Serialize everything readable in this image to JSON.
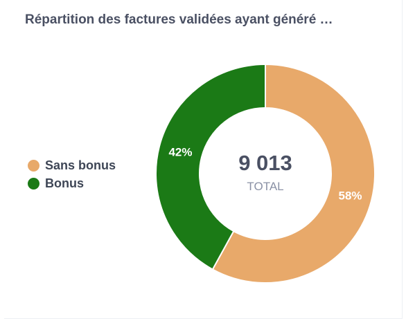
{
  "card": {
    "title": "Répartition des factures validées ayant généré …"
  },
  "chart_data": {
    "type": "pie",
    "categories": [
      "Sans bonus",
      "Bonus"
    ],
    "values": [
      58,
      42
    ],
    "labels": [
      "58%",
      "42%"
    ],
    "colors": [
      "#e8a96a",
      "#1b7a16"
    ],
    "legend_position": "left",
    "center": {
      "value": "9 013",
      "label": "TOTAL"
    }
  }
}
